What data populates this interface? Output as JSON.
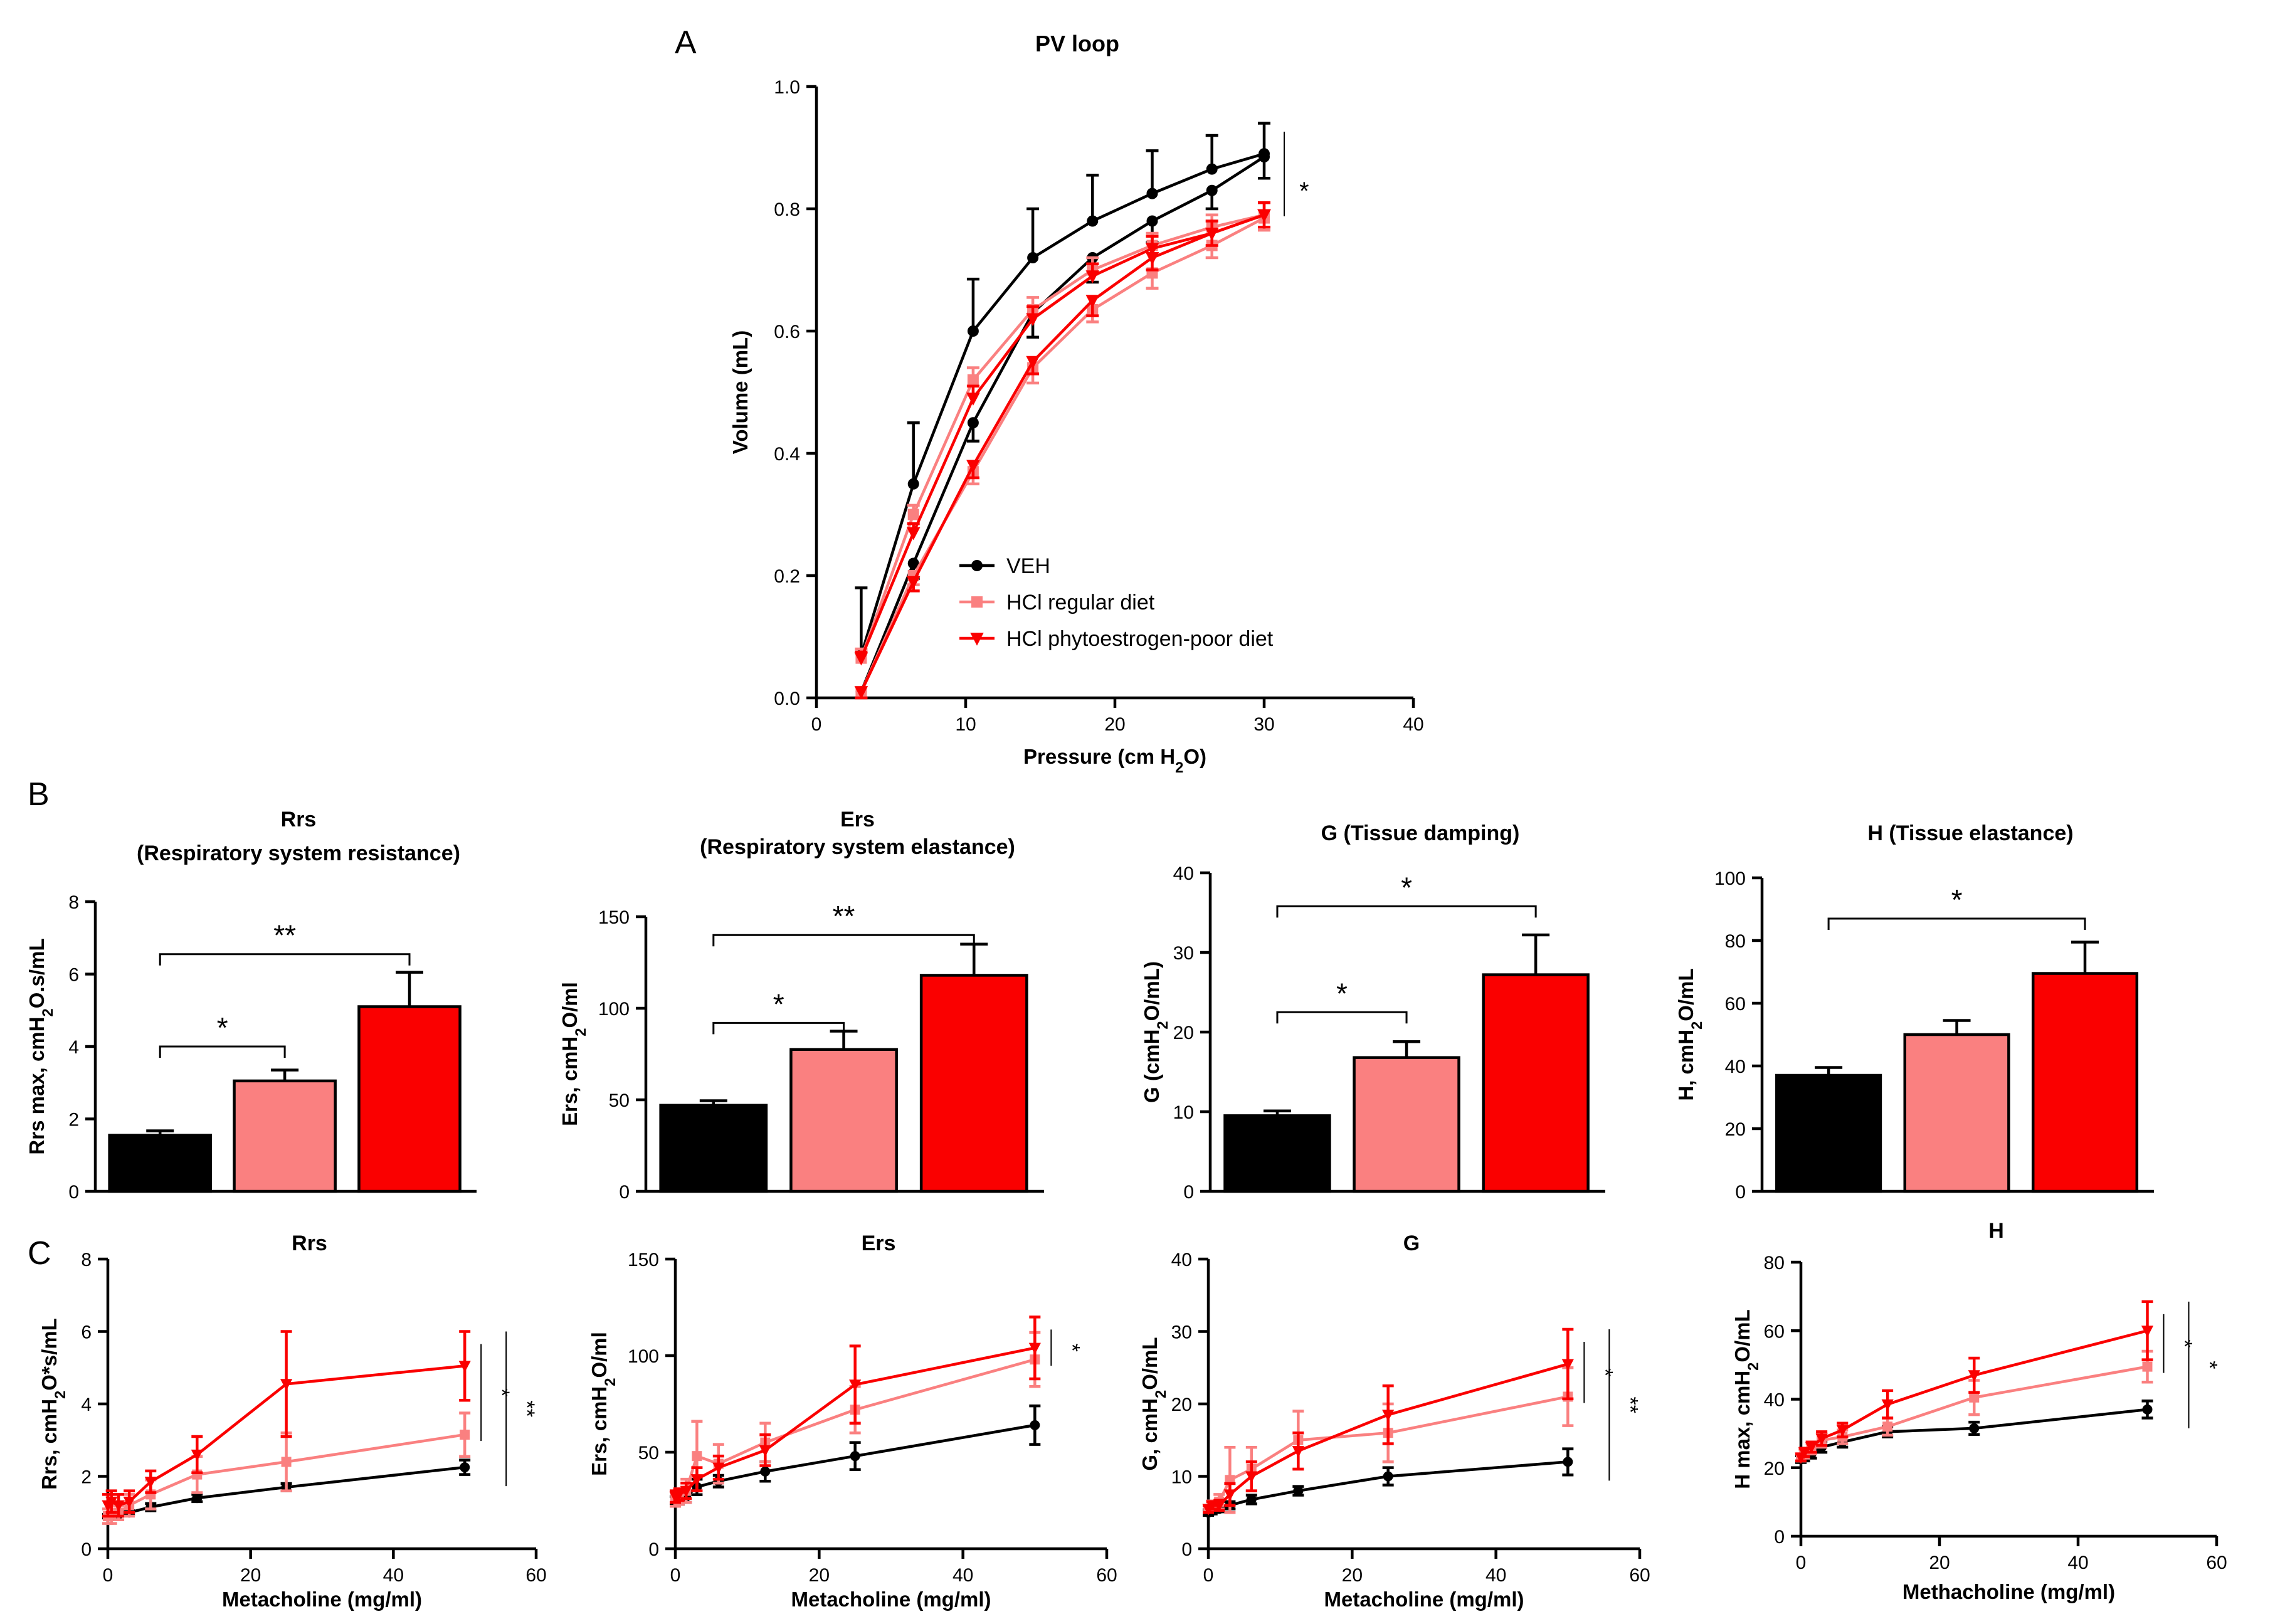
{
  "panels": {
    "A": "A",
    "B": "B",
    "C": "C"
  },
  "colors": {
    "veh": "#000000",
    "hcl_regular": "#fa8080",
    "hcl_poor": "#fa0000"
  },
  "chart_data": [
    {
      "id": "pv",
      "type": "line",
      "title": "PV loop",
      "xlabel": "Pressure (cm H2O)",
      "ylabel": "Volume (mL)",
      "xlim": [
        0,
        40
      ],
      "ylim": [
        0,
        1
      ],
      "xticks": [
        0,
        10,
        20,
        30,
        40
      ],
      "yticks": [
        0,
        0.2,
        0.4,
        0.6,
        0.8,
        1
      ],
      "ytick_labels": [
        "0.0",
        "0.2",
        "0.4",
        "0.6",
        "0.8",
        "1.0"
      ],
      "legend": [
        "VEH",
        "HCl regular diet",
        "HCl phytoestrogen-poor diet"
      ],
      "significance": "*",
      "series": [
        {
          "name": "VEH",
          "color": "#000000",
          "marker": "circle",
          "branches": [
            {
              "x": [
                3,
                6.5,
                10.5,
                14.5,
                18.5,
                22.5,
                26.5,
                30
              ],
              "y": [
                0.07,
                0.35,
                0.6,
                0.72,
                0.78,
                0.825,
                0.865,
                0.89
              ],
              "err": [
                0.11,
                0.1,
                0.085,
                0.08,
                0.075,
                0.07,
                0.055,
                0.05
              ]
            },
            {
              "x": [
                3,
                6.5,
                10.5,
                14.5,
                18.5,
                22.5,
                26.5,
                30
              ],
              "y": [
                0.01,
                0.22,
                0.45,
                0.63,
                0.72,
                0.78,
                0.83,
                0.885
              ],
              "err": [
                0.01,
                0.025,
                0.03,
                0.04,
                0.04,
                0.035,
                0.03,
                0.035
              ]
            }
          ]
        },
        {
          "name": "HCl regular diet",
          "color": "#fa8080",
          "marker": "square",
          "branches": [
            {
              "x": [
                3,
                6.5,
                10.5,
                14.5,
                18.5,
                22.5,
                26.5,
                30
              ],
              "y": [
                0.065,
                0.3,
                0.52,
                0.635,
                0.7,
                0.74,
                0.77,
                0.79
              ],
              "err": [
                0.015,
                0.015,
                0.02,
                0.02,
                0.02,
                0.02,
                0.02,
                0.02
              ]
            },
            {
              "x": [
                3,
                6.5,
                10.5,
                14.5,
                18.5,
                22.5,
                26.5,
                30
              ],
              "y": [
                0.01,
                0.2,
                0.37,
                0.54,
                0.635,
                0.695,
                0.74,
                0.785
              ],
              "err": [
                0.01,
                0.015,
                0.02,
                0.025,
                0.02,
                0.025,
                0.02,
                0.02
              ]
            }
          ]
        },
        {
          "name": "HCl phytoestrogen-poor diet",
          "color": "#fa0000",
          "marker": "triangle-down",
          "branches": [
            {
              "x": [
                3,
                6.5,
                10.5,
                14.5,
                18.5,
                22.5,
                26.5,
                30
              ],
              "y": [
                0.065,
                0.27,
                0.49,
                0.62,
                0.69,
                0.735,
                0.76,
                0.79
              ],
              "err": [
                0.01,
                0.015,
                0.02,
                0.02,
                0.02,
                0.02,
                0.02,
                0.02
              ]
            },
            {
              "x": [
                3,
                6.5,
                10.5,
                14.5,
                18.5,
                22.5,
                26.5,
                30
              ],
              "y": [
                0.01,
                0.19,
                0.38,
                0.55,
                0.65,
                0.72,
                0.76,
                0.79
              ],
              "err": [
                0.01,
                0.015,
                0.02,
                0.02,
                0.025,
                0.02,
                0.02,
                0.02
              ]
            }
          ]
        }
      ]
    },
    {
      "id": "b_rrs",
      "type": "bar",
      "title": "Rrs",
      "subtitle": "(Respiratory system resistance)",
      "ylabel": "Rrs max, cmH2O.s/mL",
      "ylim": [
        0,
        8
      ],
      "yticks": [
        0,
        2,
        4,
        6,
        8
      ],
      "categories": [
        "VEH",
        "HCl regular diet",
        "HCl phytoestrogen-poor diet"
      ],
      "values": [
        1.55,
        3.05,
        5.1
      ],
      "errors": [
        0.12,
        0.3,
        0.95
      ],
      "colors": [
        "#000000",
        "#fa8080",
        "#fa0000"
      ],
      "brackets": [
        {
          "from": 0,
          "to": 1,
          "y": 4.0,
          "label": "*"
        },
        {
          "from": 0,
          "to": 2,
          "y": 6.55,
          "label": "**"
        }
      ]
    },
    {
      "id": "b_ers",
      "type": "bar",
      "title": "Ers",
      "subtitle": "(Respiratory system elastance)",
      "ylabel": "Ers, cmH2O/ml",
      "ylim": [
        0,
        150
      ],
      "yticks": [
        0,
        50,
        100,
        150
      ],
      "categories": [
        "VEH",
        "HCl regular diet",
        "HCl phytoestrogen-poor diet"
      ],
      "values": [
        47,
        77.5,
        118
      ],
      "errors": [
        2.5,
        10,
        17
      ],
      "colors": [
        "#000000",
        "#fa8080",
        "#fa0000"
      ],
      "brackets": [
        {
          "from": 0,
          "to": 1,
          "y": 92,
          "label": "*"
        },
        {
          "from": 0,
          "to": 2,
          "y": 140,
          "label": "**"
        }
      ]
    },
    {
      "id": "b_g",
      "type": "bar",
      "title": "G (Tissue damping)",
      "ylabel": "G (cmH2O/mL)",
      "ylim": [
        0,
        40
      ],
      "yticks": [
        0,
        10,
        20,
        30,
        40
      ],
      "categories": [
        "VEH",
        "HCl regular diet",
        "HCl phytoestrogen-poor diet"
      ],
      "values": [
        9.5,
        16.8,
        27.2
      ],
      "errors": [
        0.6,
        2.0,
        5.0
      ],
      "colors": [
        "#000000",
        "#fa8080",
        "#fa0000"
      ],
      "brackets": [
        {
          "from": 0,
          "to": 1,
          "y": 22.5,
          "label": "*"
        },
        {
          "from": 0,
          "to": 2,
          "y": 35.8,
          "label": "*"
        }
      ]
    },
    {
      "id": "b_h",
      "type": "bar",
      "title": "H (Tissue elastance)",
      "ylabel": "H, cmH2O/mL",
      "ylim": [
        0,
        100
      ],
      "yticks": [
        0,
        20,
        40,
        60,
        80,
        100
      ],
      "categories": [
        "VEH",
        "HCl regular diet",
        "HCl phytoestrogen-poor diet"
      ],
      "values": [
        37,
        50,
        69.5
      ],
      "errors": [
        2.5,
        4.5,
        10
      ],
      "colors": [
        "#000000",
        "#fa8080",
        "#fa0000"
      ],
      "brackets": [
        {
          "from": 0,
          "to": 2,
          "y": 87,
          "label": "*"
        }
      ]
    },
    {
      "id": "c_rrs",
      "type": "line",
      "title": "Rrs",
      "xlabel": "Metacholine (mg/ml)",
      "ylabel": "Rrs, cmH2O*s/mL",
      "xlim": [
        0,
        60
      ],
      "ylim": [
        0,
        8
      ],
      "xticks": [
        0,
        20,
        40,
        60
      ],
      "yticks": [
        0,
        2,
        4,
        6,
        8
      ],
      "x": [
        0,
        0.5,
        1.5,
        3,
        6,
        12.5,
        25,
        50
      ],
      "significance": [
        "*",
        "**"
      ],
      "series": [
        {
          "name": "VEH",
          "color": "#000000",
          "marker": "circle",
          "values": [
            0.9,
            0.9,
            0.95,
            1.0,
            1.15,
            1.4,
            1.7,
            2.25
          ],
          "errors": [
            0.05,
            0.05,
            0.05,
            0.05,
            0.1,
            0.1,
            0.1,
            0.2
          ]
        },
        {
          "name": "HCl regular diet",
          "color": "#fa8080",
          "marker": "square",
          "values": [
            0.9,
            0.95,
            1.0,
            1.2,
            1.5,
            2.05,
            2.4,
            3.15
          ],
          "errors": [
            0.2,
            0.25,
            0.2,
            0.3,
            0.4,
            0.5,
            0.8,
            0.6
          ]
        },
        {
          "name": "HCl phytoestrogen-poor diet",
          "color": "#fa0000",
          "marker": "triangle-down",
          "values": [
            1.2,
            1.3,
            1.2,
            1.3,
            1.85,
            2.6,
            4.55,
            5.05
          ],
          "errors": [
            0.3,
            0.3,
            0.3,
            0.3,
            0.3,
            0.5,
            1.45,
            0.95
          ]
        }
      ]
    },
    {
      "id": "c_ers",
      "type": "line",
      "title": "Ers",
      "xlabel": "Metacholine (mg/ml)",
      "ylabel": "Ers, cmH2O/ml",
      "xlim": [
        0,
        60
      ],
      "ylim": [
        0,
        150
      ],
      "xticks": [
        0,
        20,
        40,
        60
      ],
      "yticks": [
        0,
        50,
        100,
        150
      ],
      "x": [
        0,
        0.5,
        1.5,
        3,
        6,
        12.5,
        25,
        50
      ],
      "significance": [
        "*"
      ],
      "series": [
        {
          "name": "VEH",
          "color": "#000000",
          "marker": "circle",
          "values": [
            25,
            25,
            27,
            32,
            35,
            40,
            48,
            64
          ],
          "errors": [
            2,
            2,
            3,
            4,
            3,
            5,
            7,
            10
          ]
        },
        {
          "name": "HCl regular diet",
          "color": "#fa8080",
          "marker": "square",
          "values": [
            26,
            27,
            30,
            48,
            44,
            55,
            72,
            98
          ],
          "errors": [
            4,
            4,
            6,
            18,
            10,
            10,
            12,
            14
          ]
        },
        {
          "name": "HCl phytoestrogen-poor diet",
          "color": "#fa0000",
          "marker": "triangle-down",
          "values": [
            27,
            28,
            30,
            36,
            42,
            51,
            85,
            104
          ],
          "errors": [
            3,
            3,
            4,
            6,
            6,
            8,
            20,
            16
          ]
        }
      ]
    },
    {
      "id": "c_g",
      "type": "line",
      "title": "G",
      "xlabel": "Metacholine (mg/ml)",
      "ylabel": "G, cmH2O/mL",
      "xlim": [
        0,
        60
      ],
      "ylim": [
        0,
        40
      ],
      "xticks": [
        0,
        20,
        40,
        60
      ],
      "yticks": [
        0,
        10,
        20,
        30,
        40
      ],
      "x": [
        0,
        0.5,
        1.5,
        3,
        6,
        12.5,
        25,
        50
      ],
      "significance": [
        "*",
        "**"
      ],
      "series": [
        {
          "name": "VEH",
          "color": "#000000",
          "marker": "circle",
          "values": [
            5,
            5.2,
            5.5,
            6,
            6.8,
            8,
            10,
            12
          ],
          "errors": [
            0.4,
            0.4,
            0.4,
            0.5,
            0.6,
            0.6,
            1.2,
            1.8
          ]
        },
        {
          "name": "HCl regular diet",
          "color": "#fa8080",
          "marker": "square",
          "values": [
            5.5,
            6,
            6.5,
            9.5,
            11,
            15,
            16,
            21
          ],
          "errors": [
            0.5,
            0.6,
            1,
            4.5,
            3,
            4,
            4,
            4
          ]
        },
        {
          "name": "HCl phytoestrogen-poor diet",
          "color": "#fa0000",
          "marker": "triangle-down",
          "values": [
            5.5,
            6,
            6,
            7.5,
            10,
            13.5,
            18.5,
            25.5
          ],
          "errors": [
            0.5,
            0.5,
            0.7,
            1.5,
            2,
            2.5,
            4,
            4.8
          ]
        }
      ]
    },
    {
      "id": "c_h",
      "type": "line",
      "title": "H",
      "xlabel": "Methacholine (mg/ml)",
      "ylabel": "H max, cmH2O/mL",
      "xlim": [
        0,
        60
      ],
      "ylim": [
        0,
        80
      ],
      "xticks": [
        0,
        20,
        40,
        60
      ],
      "yticks": [
        0,
        20,
        40,
        60,
        80
      ],
      "x": [
        0,
        0.5,
        1.5,
        3,
        6,
        12.5,
        25,
        50
      ],
      "significance": [
        "*",
        "*"
      ],
      "series": [
        {
          "name": "VEH",
          "color": "#000000",
          "marker": "circle",
          "values": [
            22.5,
            23,
            24,
            26,
            27.5,
            30.5,
            31.5,
            37
          ],
          "errors": [
            1,
            1,
            1.2,
            1.5,
            1.5,
            1.5,
            1.8,
            2.5
          ]
        },
        {
          "name": "HCl regular diet",
          "color": "#fa8080",
          "marker": "square",
          "values": [
            23,
            24,
            25.5,
            28,
            29,
            32,
            40.5,
            49.5
          ],
          "errors": [
            1,
            1.2,
            1.5,
            2,
            2,
            2.5,
            5,
            4.5
          ]
        },
        {
          "name": "HCl phytoestrogen-poor diet",
          "color": "#fa0000",
          "marker": "triangle-down",
          "values": [
            23,
            24.5,
            26,
            28.5,
            31,
            38.5,
            47,
            60
          ],
          "errors": [
            1,
            1.2,
            1.5,
            2,
            2,
            4,
            5,
            8.5
          ]
        }
      ]
    }
  ]
}
